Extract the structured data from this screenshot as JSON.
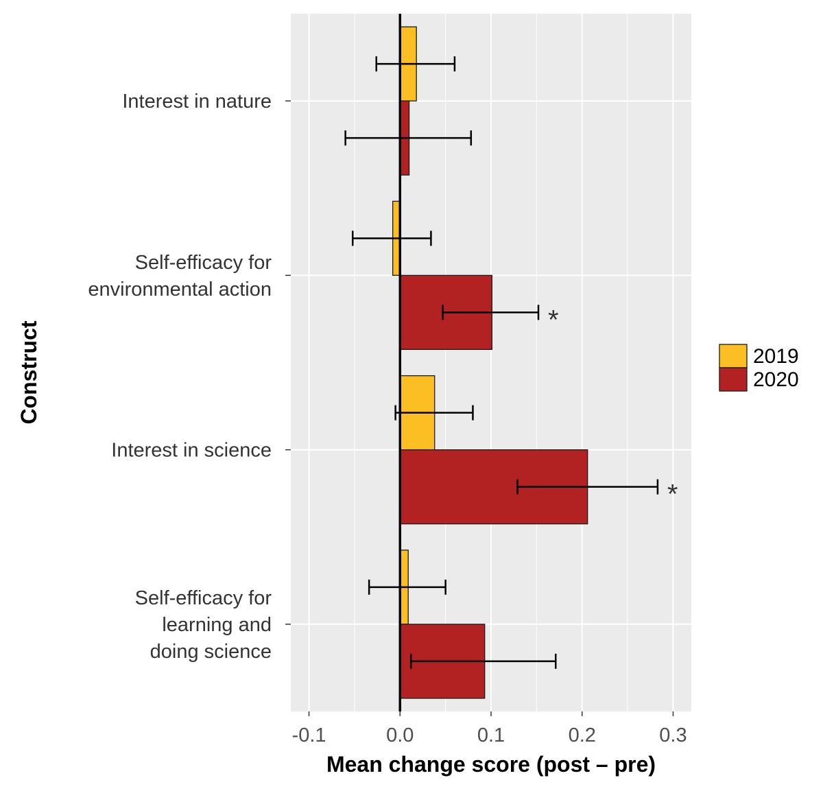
{
  "chart_data": {
    "type": "bar",
    "orientation": "horizontal",
    "title": "",
    "xlabel": "Mean change score (post – pre)",
    "ylabel": "Construct",
    "xlim": [
      -0.12,
      0.32
    ],
    "xticks": [
      -0.1,
      0.0,
      0.1,
      0.2,
      0.3
    ],
    "xtick_labels": [
      "-0.1",
      "0.0",
      "0.1",
      "0.2",
      "0.3"
    ],
    "categories": [
      [
        "Interest in nature"
      ],
      [
        "Self-efficacy for",
        "environmental action"
      ],
      [
        "Interest in science"
      ],
      [
        "Self-efficacy for",
        "learning and",
        "doing science"
      ]
    ],
    "series": [
      {
        "name": "2019",
        "color": "#FBBF24",
        "values": [
          0.018,
          -0.008,
          0.038,
          0.009
        ],
        "error_low": [
          -0.026,
          -0.052,
          -0.005,
          -0.034
        ],
        "error_high": [
          0.06,
          0.034,
          0.08,
          0.05
        ],
        "significance": [
          "",
          "",
          "",
          ""
        ]
      },
      {
        "name": "2020",
        "color": "#B22222",
        "values": [
          0.01,
          0.101,
          0.206,
          0.093
        ],
        "error_low": [
          -0.06,
          0.047,
          0.129,
          0.012
        ],
        "error_high": [
          0.078,
          0.152,
          0.283,
          0.171
        ],
        "significance": [
          "",
          "*",
          "*",
          ""
        ]
      }
    ],
    "grid": true,
    "legend": "right"
  }
}
